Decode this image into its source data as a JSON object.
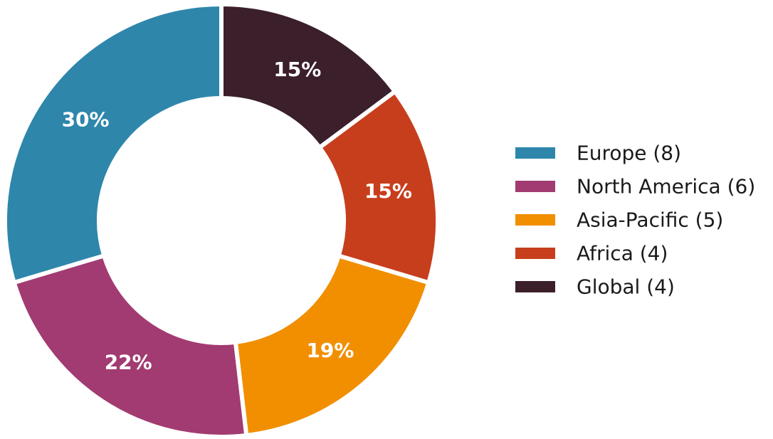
{
  "chart_data": {
    "type": "pie",
    "variant": "donut",
    "legend_position": "right",
    "title": "",
    "slices": [
      {
        "name": "Europe",
        "count": 8,
        "percent_label": "30%",
        "legend_label": "Europe (8)",
        "color": "#2e86ab"
      },
      {
        "name": "North America",
        "count": 6,
        "percent_label": "22%",
        "legend_label": "North America (6)",
        "color": "#a23b72"
      },
      {
        "name": "Asia-Pacific",
        "count": 5,
        "percent_label": "19%",
        "legend_label": "Asia-Pacific (5)",
        "color": "#f18f01"
      },
      {
        "name": "Africa",
        "count": 4,
        "percent_label": "15%",
        "legend_label": "Africa (4)",
        "color": "#c73e1d"
      },
      {
        "name": "Global",
        "count": 4,
        "percent_label": "15%",
        "legend_label": "Global (4)",
        "color": "#3b1f2b"
      }
    ]
  }
}
